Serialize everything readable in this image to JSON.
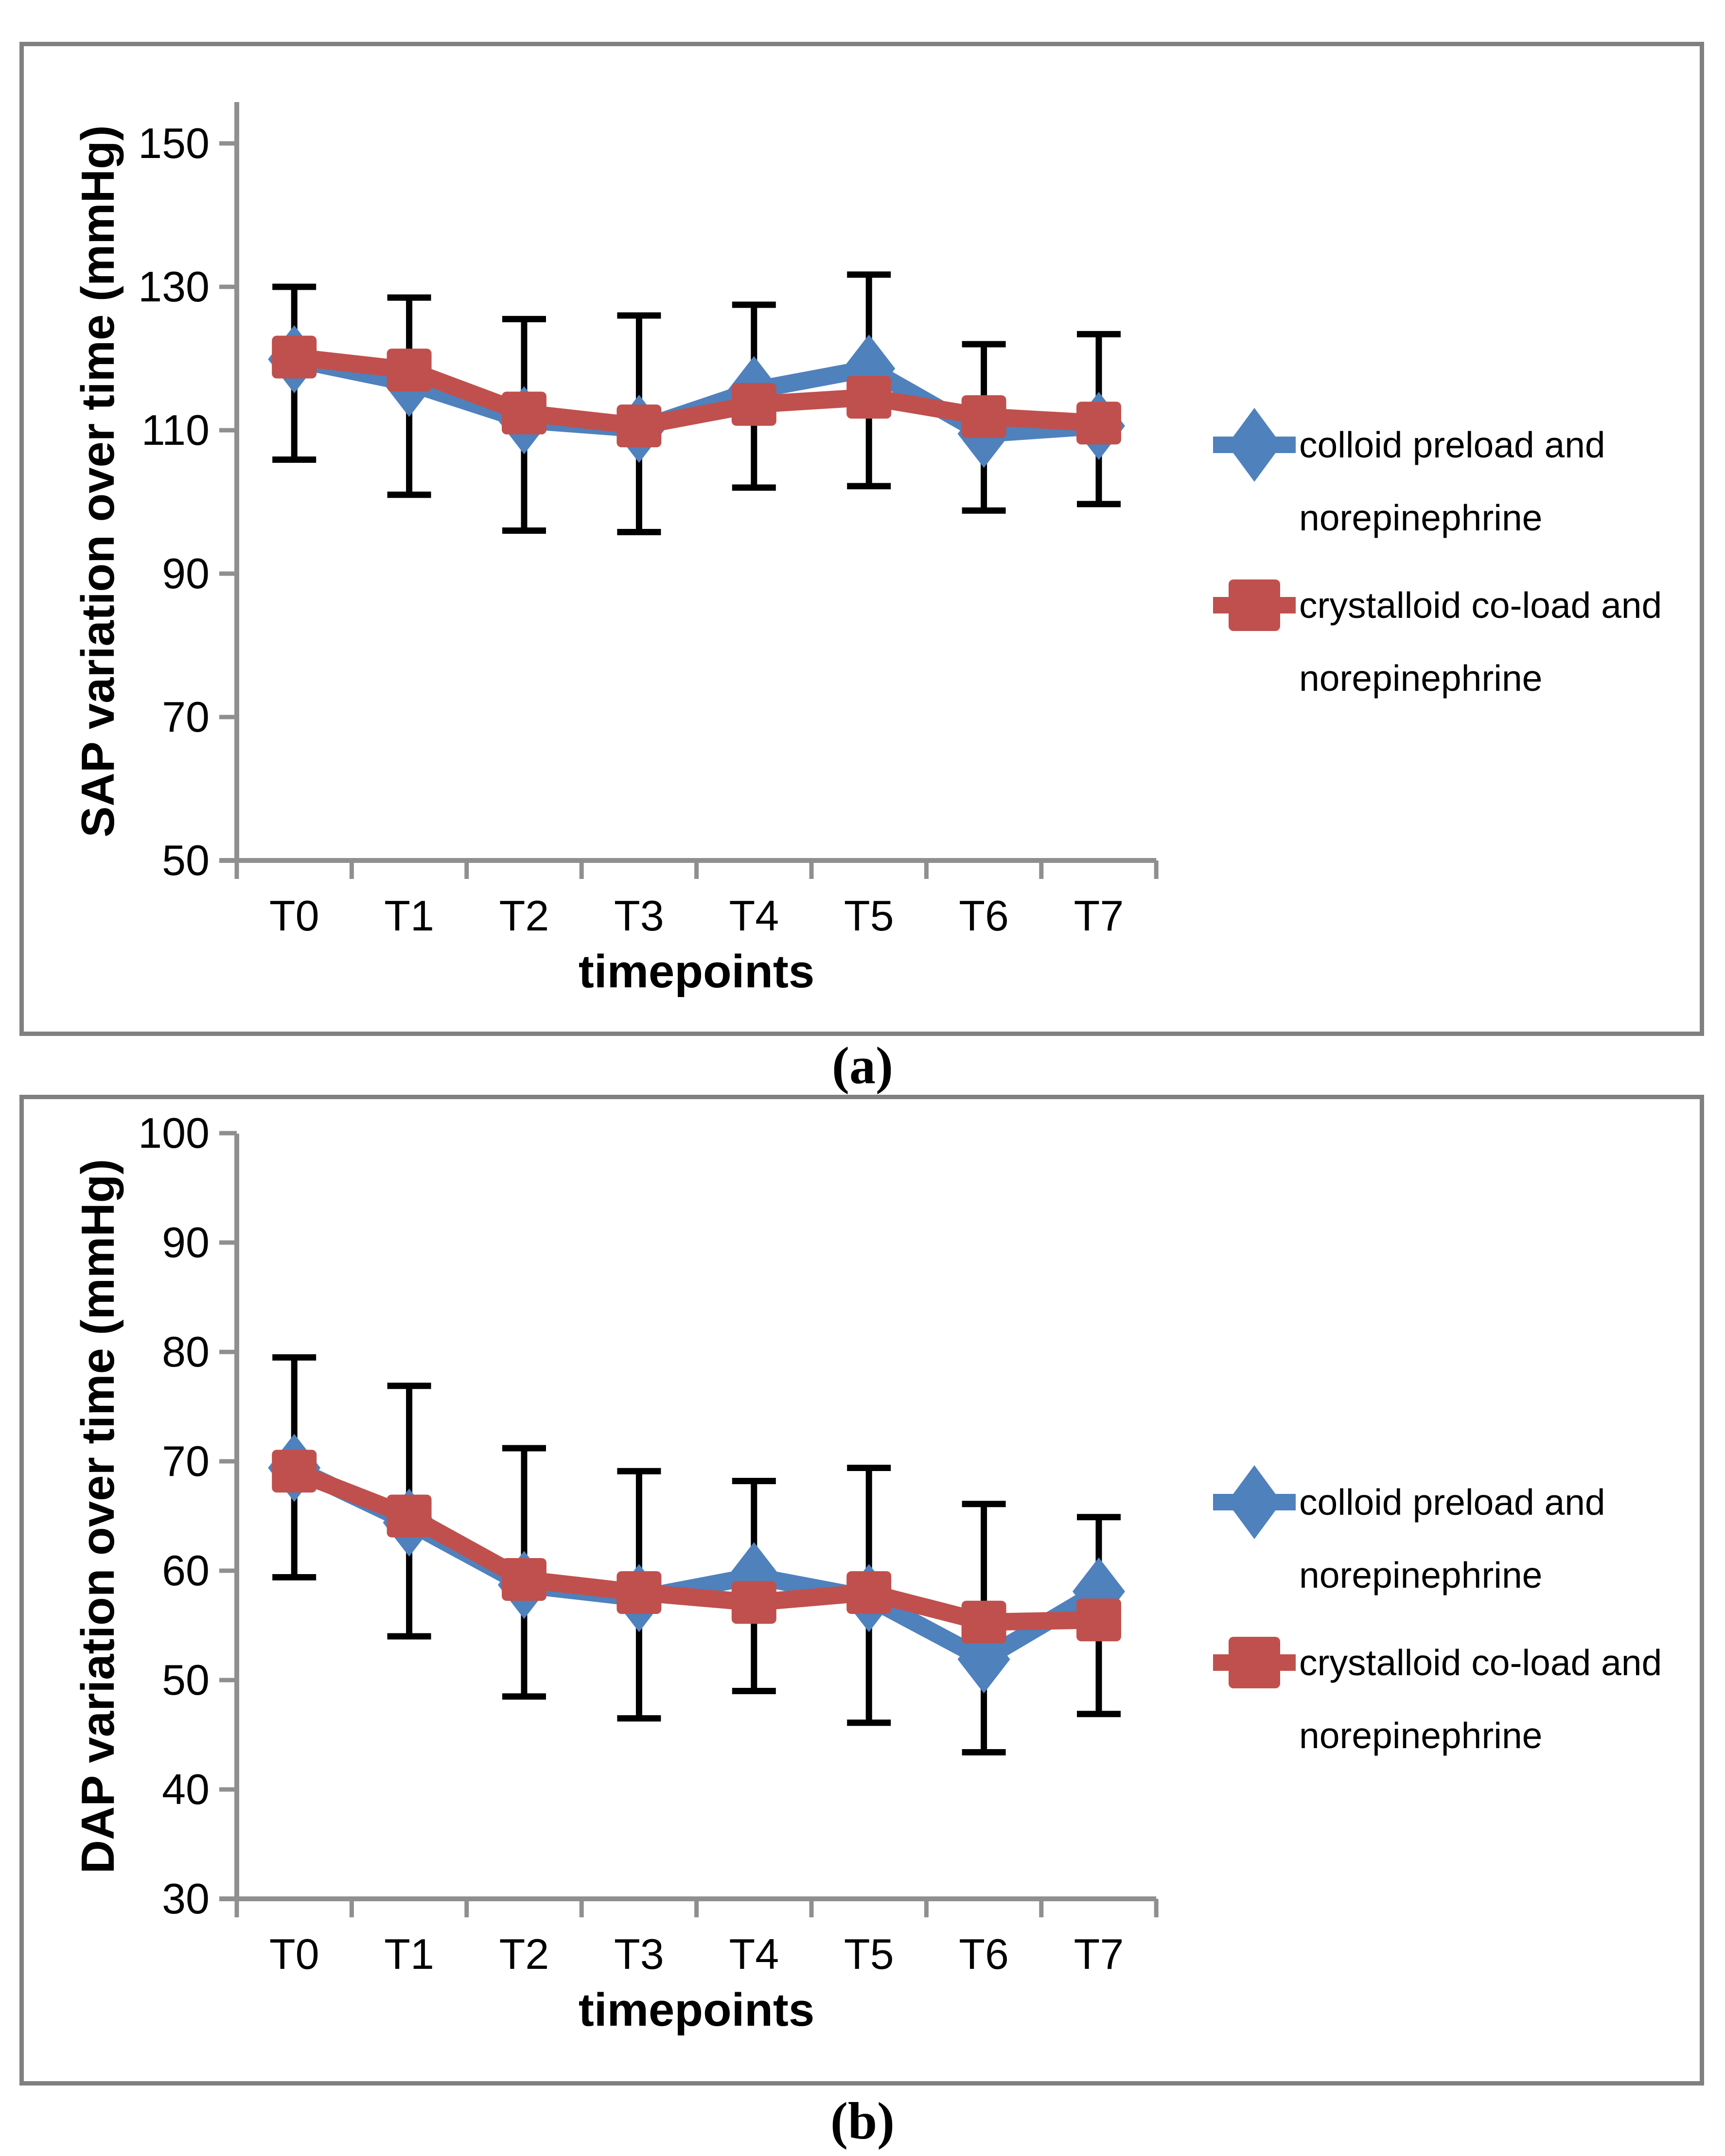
{
  "colors": {
    "series_blue": "#4F81BD",
    "series_red": "#C0504D",
    "error_bar": "#000000",
    "axis_gray": "#8F8F8F",
    "frame_gray": "#808080",
    "text_black": "#000000"
  },
  "chart_data": [
    {
      "type": "line",
      "panel": "a",
      "caption": "(a)",
      "ylabel": "SAP variation over time (mmHg)",
      "xlabel": "timepoints",
      "categories": [
        "T0",
        "T1",
        "T2",
        "T3",
        "T4",
        "T5",
        "T6",
        "T7"
      ],
      "y_ticks": [
        50,
        70,
        90,
        110,
        130,
        150
      ],
      "ylim": [
        50,
        157
      ],
      "grid": false,
      "legend_position": "right",
      "series": [
        {
          "name": "colloid preload and norepinephrine",
          "legend_lines": [
            "colloid preload and",
            "norepinephrine"
          ],
          "marker": "diamond",
          "color": "#4F81BD",
          "values": [
            119.9,
            116.6,
            111.4,
            110.2,
            115.6,
            118.6,
            109.5,
            110.6
          ]
        },
        {
          "name": "crystalloid co-load and norepinephrine",
          "legend_lines": [
            "crystalloid co-load and",
            "norepinephrine"
          ],
          "marker": "square",
          "color": "#C0504D",
          "values": [
            120.2,
            118.4,
            112.4,
            110.6,
            113.6,
            114.6,
            111.9,
            111.0
          ]
        }
      ],
      "error_bars": {
        "top": [
          130.0,
          128.5,
          125.5,
          126.0,
          127.5,
          131.7,
          122.0,
          123.4
        ],
        "bottom": [
          105.9,
          101.0,
          96.0,
          95.8,
          102.0,
          102.2,
          98.8,
          99.7
        ]
      }
    },
    {
      "type": "line",
      "panel": "b",
      "caption": "(b)",
      "ylabel": "DAP variation over time (mmHg)",
      "xlabel": "timepoints",
      "categories": [
        "T0",
        "T1",
        "T2",
        "T3",
        "T4",
        "T5",
        "T6",
        "T7"
      ],
      "y_ticks": [
        30,
        40,
        50,
        60,
        70,
        80,
        90,
        100
      ],
      "ylim": [
        30,
        100.5
      ],
      "grid": false,
      "legend_position": "right",
      "series": [
        {
          "name": "colloid preload and norepinephrine",
          "legend_lines": [
            "colloid preload and",
            "norepinephrine"
          ],
          "marker": "diamond",
          "color": "#4F81BD",
          "values": [
            69.4,
            64.4,
            58.7,
            57.5,
            59.5,
            57.5,
            51.9,
            58.1
          ]
        },
        {
          "name": "crystalloid co-load and norepinephrine",
          "legend_lines": [
            "crystalloid co-load and",
            "norepinephrine"
          ],
          "marker": "square",
          "color": "#C0504D",
          "values": [
            69.1,
            65.0,
            59.2,
            58.0,
            57.1,
            58.0,
            55.3,
            55.5
          ]
        }
      ],
      "error_bars": {
        "top": [
          79.5,
          76.9,
          71.2,
          69.1,
          68.2,
          69.4,
          66.1,
          64.9
        ],
        "bottom": [
          59.4,
          54.0,
          48.5,
          46.5,
          49.0,
          46.1,
          43.4,
          46.9
        ]
      }
    }
  ]
}
